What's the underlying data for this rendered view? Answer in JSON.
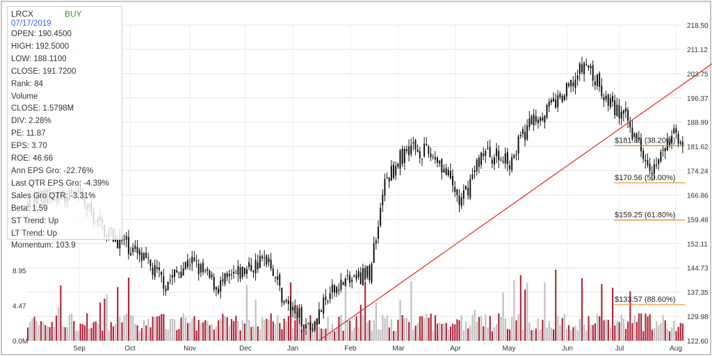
{
  "info_panel": {
    "ticker": "LRCX",
    "signal": "BUY",
    "signal_color": "#2aa12a",
    "date": "07/17/2019",
    "rows": [
      "OPEN: 190.4500",
      "HIGH: 192.5000",
      "LOW: 188.1100",
      "CLOSE: 191.7200",
      "Rank: 84",
      "Volume",
      "CLOSE: 1.5798M",
      "DIV: 2.28%",
      "PE: 11.87",
      "EPS: 3.70",
      "ROE: 46.66",
      "Ann EPS Gro: -22.76%",
      "Last QTR EPS Gro: -4.39%",
      "Sales Gro QTR: -3.31%",
      "Beta: 1.59",
      "ST Trend: Up",
      "LT Trend: Up",
      "Momentum: 103.9"
    ]
  },
  "chart_data": {
    "type": "candlestick",
    "price_axis": {
      "ticks": [
        "218.50",
        "211.12",
        "203.75",
        "196.37",
        "188.99",
        "181.62",
        "174.24",
        "166.86",
        "159.48",
        "152.11",
        "144.73",
        "137.35",
        "129.98",
        "122.60"
      ],
      "range": [
        122.6,
        218.5
      ]
    },
    "volume_axis": {
      "ticks": [
        "0.0M",
        "4.47",
        "8.95"
      ],
      "range_millions": [
        0,
        14.5
      ]
    },
    "months": [
      "Sep",
      "Oct",
      "Nov",
      "Dec",
      "Jan",
      "Feb",
      "Mar",
      "Apr",
      "May",
      "Jun",
      "Jul",
      "Aug"
    ],
    "price_path": [
      {
        "m": 0.0,
        "p": 166.0
      },
      {
        "m": 0.5,
        "p": 156.0
      },
      {
        "m": 1.0,
        "p": 151.0
      },
      {
        "m": 1.6,
        "p": 140.0
      },
      {
        "m": 2.0,
        "p": 147.0
      },
      {
        "m": 2.5,
        "p": 139.0
      },
      {
        "m": 3.0,
        "p": 144.0
      },
      {
        "m": 3.5,
        "p": 148.0
      },
      {
        "m": 3.8,
        "p": 135.0
      },
      {
        "m": 4.3,
        "p": 127.0
      },
      {
        "m": 4.8,
        "p": 140.0
      },
      {
        "m": 5.4,
        "p": 143.0
      },
      {
        "m": 5.7,
        "p": 170.0
      },
      {
        "m": 6.2,
        "p": 182.0
      },
      {
        "m": 6.7,
        "p": 178.0
      },
      {
        "m": 7.1,
        "p": 164.0
      },
      {
        "m": 7.5,
        "p": 180.0
      },
      {
        "m": 8.0,
        "p": 177.0
      },
      {
        "m": 8.4,
        "p": 190.0
      },
      {
        "m": 8.9,
        "p": 196.0
      },
      {
        "m": 9.35,
        "p": 207.0
      },
      {
        "m": 9.75,
        "p": 196.0
      },
      {
        "m": 10.1,
        "p": 190.0
      },
      {
        "m": 10.6,
        "p": 175.0
      },
      {
        "m": 11.0,
        "p": 186.0
      },
      {
        "m": 11.4,
        "p": 176.0
      },
      {
        "m": 11.7,
        "p": 188.0
      },
      {
        "m": 12.1,
        "p": 181.0
      },
      {
        "m": 12.55,
        "p": 192.0
      },
      {
        "m": 12.8,
        "p": 213.0
      },
      {
        "m": 13.1,
        "p": 208.0
      },
      {
        "m": 13.35,
        "p": 195.0
      }
    ],
    "trendline": {
      "from": {
        "m": 4.45,
        "p": 122.6
      },
      "to": {
        "m": 12.75,
        "p": 218.5
      },
      "color": "#e03030"
    },
    "fibonacci": [
      {
        "value": 181.88,
        "label": "$181.88 (38.20%)"
      },
      {
        "value": 170.56,
        "label": "$170.56 (50.00%)"
      },
      {
        "value": 159.25,
        "label": "$159.25 (61.80%)"
      },
      {
        "value": 133.57,
        "label": "$133.57 (88.60%)"
      }
    ],
    "colors": {
      "up_volume": "#c0c0c0",
      "down_volume": "#b3263a",
      "candle": "#111111",
      "fib_line": "#f08a1c",
      "grid": "#e4e4e4"
    }
  }
}
